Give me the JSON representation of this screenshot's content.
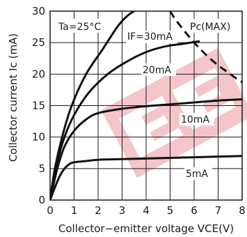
{
  "chart_data": {
    "type": "line",
    "title": "",
    "xlabel": "Collector−emitter voltage VCE(V)",
    "ylabel": "Collector current Ic (mA)",
    "xlim": [
      0,
      8
    ],
    "ylim": [
      0,
      30
    ],
    "x_ticks": [
      "0",
      "1",
      "2",
      "3",
      "4",
      "5",
      "6",
      "7",
      "8"
    ],
    "y_ticks": [
      "0",
      "5",
      "10",
      "15",
      "20",
      "25",
      "30"
    ],
    "grid": true,
    "annotations": {
      "condition": "Ta=25°C",
      "pc_max": "Pc(MAX)"
    },
    "series": [
      {
        "name": "IF=30mA",
        "x": [
          0,
          0.2,
          0.5,
          0.9,
          1.5,
          2.2,
          2.8,
          3.2,
          3.5
        ],
        "y": [
          0,
          5,
          10,
          15,
          20,
          24,
          27.5,
          29.2,
          30
        ]
      },
      {
        "name": "20mA",
        "x": [
          0,
          0.3,
          0.6,
          1.0,
          1.6,
          2.4,
          3.2,
          4.0,
          4.8,
          5.5,
          6.2
        ],
        "y": [
          0,
          6,
          10,
          13.5,
          17,
          20,
          22,
          23.5,
          24.4,
          24.8,
          25.2
        ]
      },
      {
        "name": "10mA",
        "x": [
          0,
          0.3,
          0.6,
          1.0,
          1.5,
          2.0,
          3.0,
          4.0,
          5.0,
          6.0,
          7.0,
          8.0
        ],
        "y": [
          0,
          5,
          8.5,
          11,
          12.8,
          13.8,
          14.5,
          14.9,
          15.2,
          15.5,
          15.8,
          16.0
        ]
      },
      {
        "name": "5mA",
        "x": [
          0,
          0.2,
          0.4,
          0.6,
          0.8,
          1.0,
          1.5,
          2.0,
          3.0,
          4.0,
          5.0,
          6.0,
          7.0,
          8.0
        ],
        "y": [
          0,
          2,
          3.8,
          5,
          5.7,
          6.0,
          6.2,
          6.4,
          6.5,
          6.6,
          6.7,
          6.8,
          6.9,
          7.0
        ]
      },
      {
        "name": "Pc(MAX)",
        "x": [
          5.0,
          5.2,
          5.5,
          5.8,
          6.0,
          6.3,
          6.6,
          7.0,
          7.4,
          7.8,
          8.0
        ],
        "y": [
          30,
          28.8,
          27.3,
          25.9,
          25.0,
          23.8,
          22.7,
          21.4,
          20.3,
          19.2,
          18.75
        ],
        "style": "dashed"
      }
    ]
  }
}
